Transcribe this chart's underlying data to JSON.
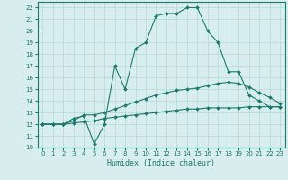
{
  "line1_x": [
    0,
    1,
    2,
    3,
    4,
    5,
    6,
    7,
    8,
    9,
    10,
    11,
    12,
    13,
    14,
    15,
    16,
    17,
    18,
    19,
    20,
    21,
    22,
    23
  ],
  "line1_y": [
    12,
    12,
    12,
    12.5,
    12.7,
    10.3,
    12,
    17,
    15,
    18.5,
    19,
    21.3,
    21.5,
    21.5,
    22,
    22,
    20,
    19,
    16.5,
    16.5,
    14.5,
    14,
    13.5,
    13.5
  ],
  "line2_x": [
    0,
    1,
    2,
    3,
    4,
    5,
    6,
    7,
    8,
    9,
    10,
    11,
    12,
    13,
    14,
    15,
    16,
    17,
    18,
    19,
    20,
    21,
    22,
    23
  ],
  "line2_y": [
    12,
    12,
    12,
    12.3,
    12.8,
    12.8,
    13.0,
    13.3,
    13.6,
    13.9,
    14.2,
    14.5,
    14.7,
    14.9,
    15.0,
    15.1,
    15.3,
    15.5,
    15.6,
    15.5,
    15.2,
    14.7,
    14.3,
    13.8
  ],
  "line3_x": [
    0,
    1,
    2,
    3,
    4,
    5,
    6,
    7,
    8,
    9,
    10,
    11,
    12,
    13,
    14,
    15,
    16,
    17,
    18,
    19,
    20,
    21,
    22,
    23
  ],
  "line3_y": [
    12,
    12,
    12,
    12.1,
    12.2,
    12.3,
    12.5,
    12.6,
    12.7,
    12.8,
    12.9,
    13.0,
    13.1,
    13.2,
    13.3,
    13.3,
    13.4,
    13.4,
    13.4,
    13.4,
    13.5,
    13.5,
    13.5,
    13.5
  ],
  "line_color": "#1a7a6e",
  "bg_color": "#d8eeee",
  "grid_color": "#b8d8d8",
  "xlabel": "Humidex (Indice chaleur)",
  "xlim": [
    -0.5,
    23.5
  ],
  "ylim": [
    10,
    22.5
  ],
  "yticks": [
    10,
    11,
    12,
    13,
    14,
    15,
    16,
    17,
    18,
    19,
    20,
    21,
    22
  ],
  "xticks": [
    0,
    1,
    2,
    3,
    4,
    5,
    6,
    7,
    8,
    9,
    10,
    11,
    12,
    13,
    14,
    15,
    16,
    17,
    18,
    19,
    20,
    21,
    22,
    23
  ]
}
